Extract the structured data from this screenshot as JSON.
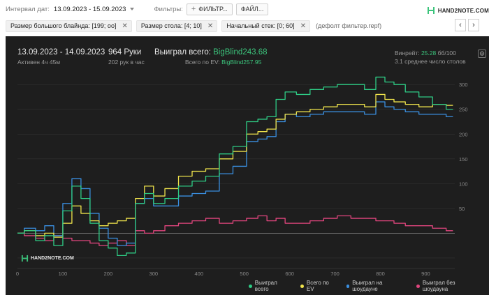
{
  "toolbar": {
    "date_label": "Интервал дат:",
    "date_value": "13.09.2023 - 15.09.2023",
    "filters_label": "Фильтры:",
    "filter_button": "ФИЛЬТР...",
    "file_button": "ФАЙЛ...",
    "logo_text": "HAND2NOTE.COM"
  },
  "chips": [
    {
      "label": "Размер большого блайнда: [199; оо]"
    },
    {
      "label": "Размер стола: [4; 10]"
    },
    {
      "label": "Начальный стек: [0; 60]"
    }
  ],
  "default_filter": "(дефолт фильтер.repf)",
  "nav": {
    "prev": "‹",
    "next": "›"
  },
  "summary": {
    "dates": "13.09.2023 - 14.09.2023",
    "active": "Активен 4ч 45м",
    "hands": "964 Руки",
    "hands_per_hour": "202 рук в час",
    "won_label": "Выиграл всего:",
    "won_value": "BigBlind243.68",
    "ev_label": "Всего по EV:",
    "ev_value": "BigBlind257.95",
    "winrate_label": "Винрейт:",
    "winrate_value": "25.28",
    "winrate_unit": "бб/100",
    "tables": "3.1 среднее число столов"
  },
  "watermark": "HAND2NOTE.COM",
  "colors": {
    "won": "#2ecc85",
    "ev": "#f0e44c",
    "showdown": "#3a8fe0",
    "no_showdown": "#e0457d"
  },
  "chart_data": {
    "type": "line",
    "xlim": [
      0,
      964
    ],
    "ylim": [
      -60,
      320
    ],
    "x_ticks": [
      0,
      100,
      200,
      300,
      400,
      500,
      600,
      700,
      800,
      900
    ],
    "y_ticks": [
      50,
      100,
      150,
      200,
      250,
      300
    ],
    "y_tick_labels": [
      "50",
      "100",
      "150",
      "200",
      "250",
      "300"
    ],
    "x": [
      0,
      30,
      50,
      70,
      90,
      110,
      130,
      150,
      170,
      190,
      210,
      230,
      250,
      270,
      290,
      310,
      340,
      370,
      400,
      430,
      460,
      490,
      520,
      540,
      560,
      580,
      600,
      630,
      660,
      690,
      720,
      750,
      780,
      800,
      820,
      840,
      870,
      900,
      930,
      960
    ],
    "series": [
      {
        "name": "Выиграл всего",
        "color_key": "won",
        "values": [
          0,
          5,
          -15,
          -5,
          -25,
          45,
          95,
          70,
          20,
          -15,
          -30,
          -45,
          -40,
          60,
          80,
          60,
          70,
          95,
          105,
          115,
          160,
          175,
          225,
          230,
          235,
          270,
          285,
          280,
          290,
          295,
          300,
          300,
          290,
          315,
          305,
          300,
          285,
          275,
          260,
          250
        ]
      },
      {
        "name": "Всего по EV",
        "color_key": "ev",
        "values": [
          0,
          5,
          -5,
          0,
          -8,
          20,
          55,
          40,
          25,
          15,
          20,
          25,
          30,
          70,
          95,
          75,
          90,
          115,
          125,
          130,
          150,
          165,
          200,
          205,
          210,
          230,
          240,
          245,
          250,
          255,
          260,
          260,
          255,
          280,
          270,
          265,
          260,
          255,
          260,
          258
        ]
      },
      {
        "name": "Выиграл на шоудауне",
        "color_key": "showdown",
        "values": [
          0,
          10,
          5,
          15,
          -5,
          60,
          110,
          90,
          40,
          10,
          -10,
          -25,
          -20,
          60,
          70,
          55,
          55,
          75,
          80,
          85,
          120,
          135,
          185,
          190,
          195,
          225,
          240,
          235,
          240,
          245,
          245,
          245,
          240,
          265,
          255,
          250,
          245,
          240,
          240,
          235
        ]
      },
      {
        "name": "Выиграл без шоудауна",
        "color_key": "no_showdown",
        "values": [
          0,
          -5,
          -10,
          -15,
          -5,
          -10,
          -15,
          -15,
          -20,
          -25,
          -20,
          -15,
          -25,
          5,
          0,
          5,
          15,
          20,
          25,
          30,
          20,
          25,
          30,
          35,
          25,
          30,
          20,
          20,
          25,
          30,
          35,
          30,
          30,
          25,
          25,
          20,
          15,
          15,
          10,
          5
        ]
      }
    ]
  }
}
